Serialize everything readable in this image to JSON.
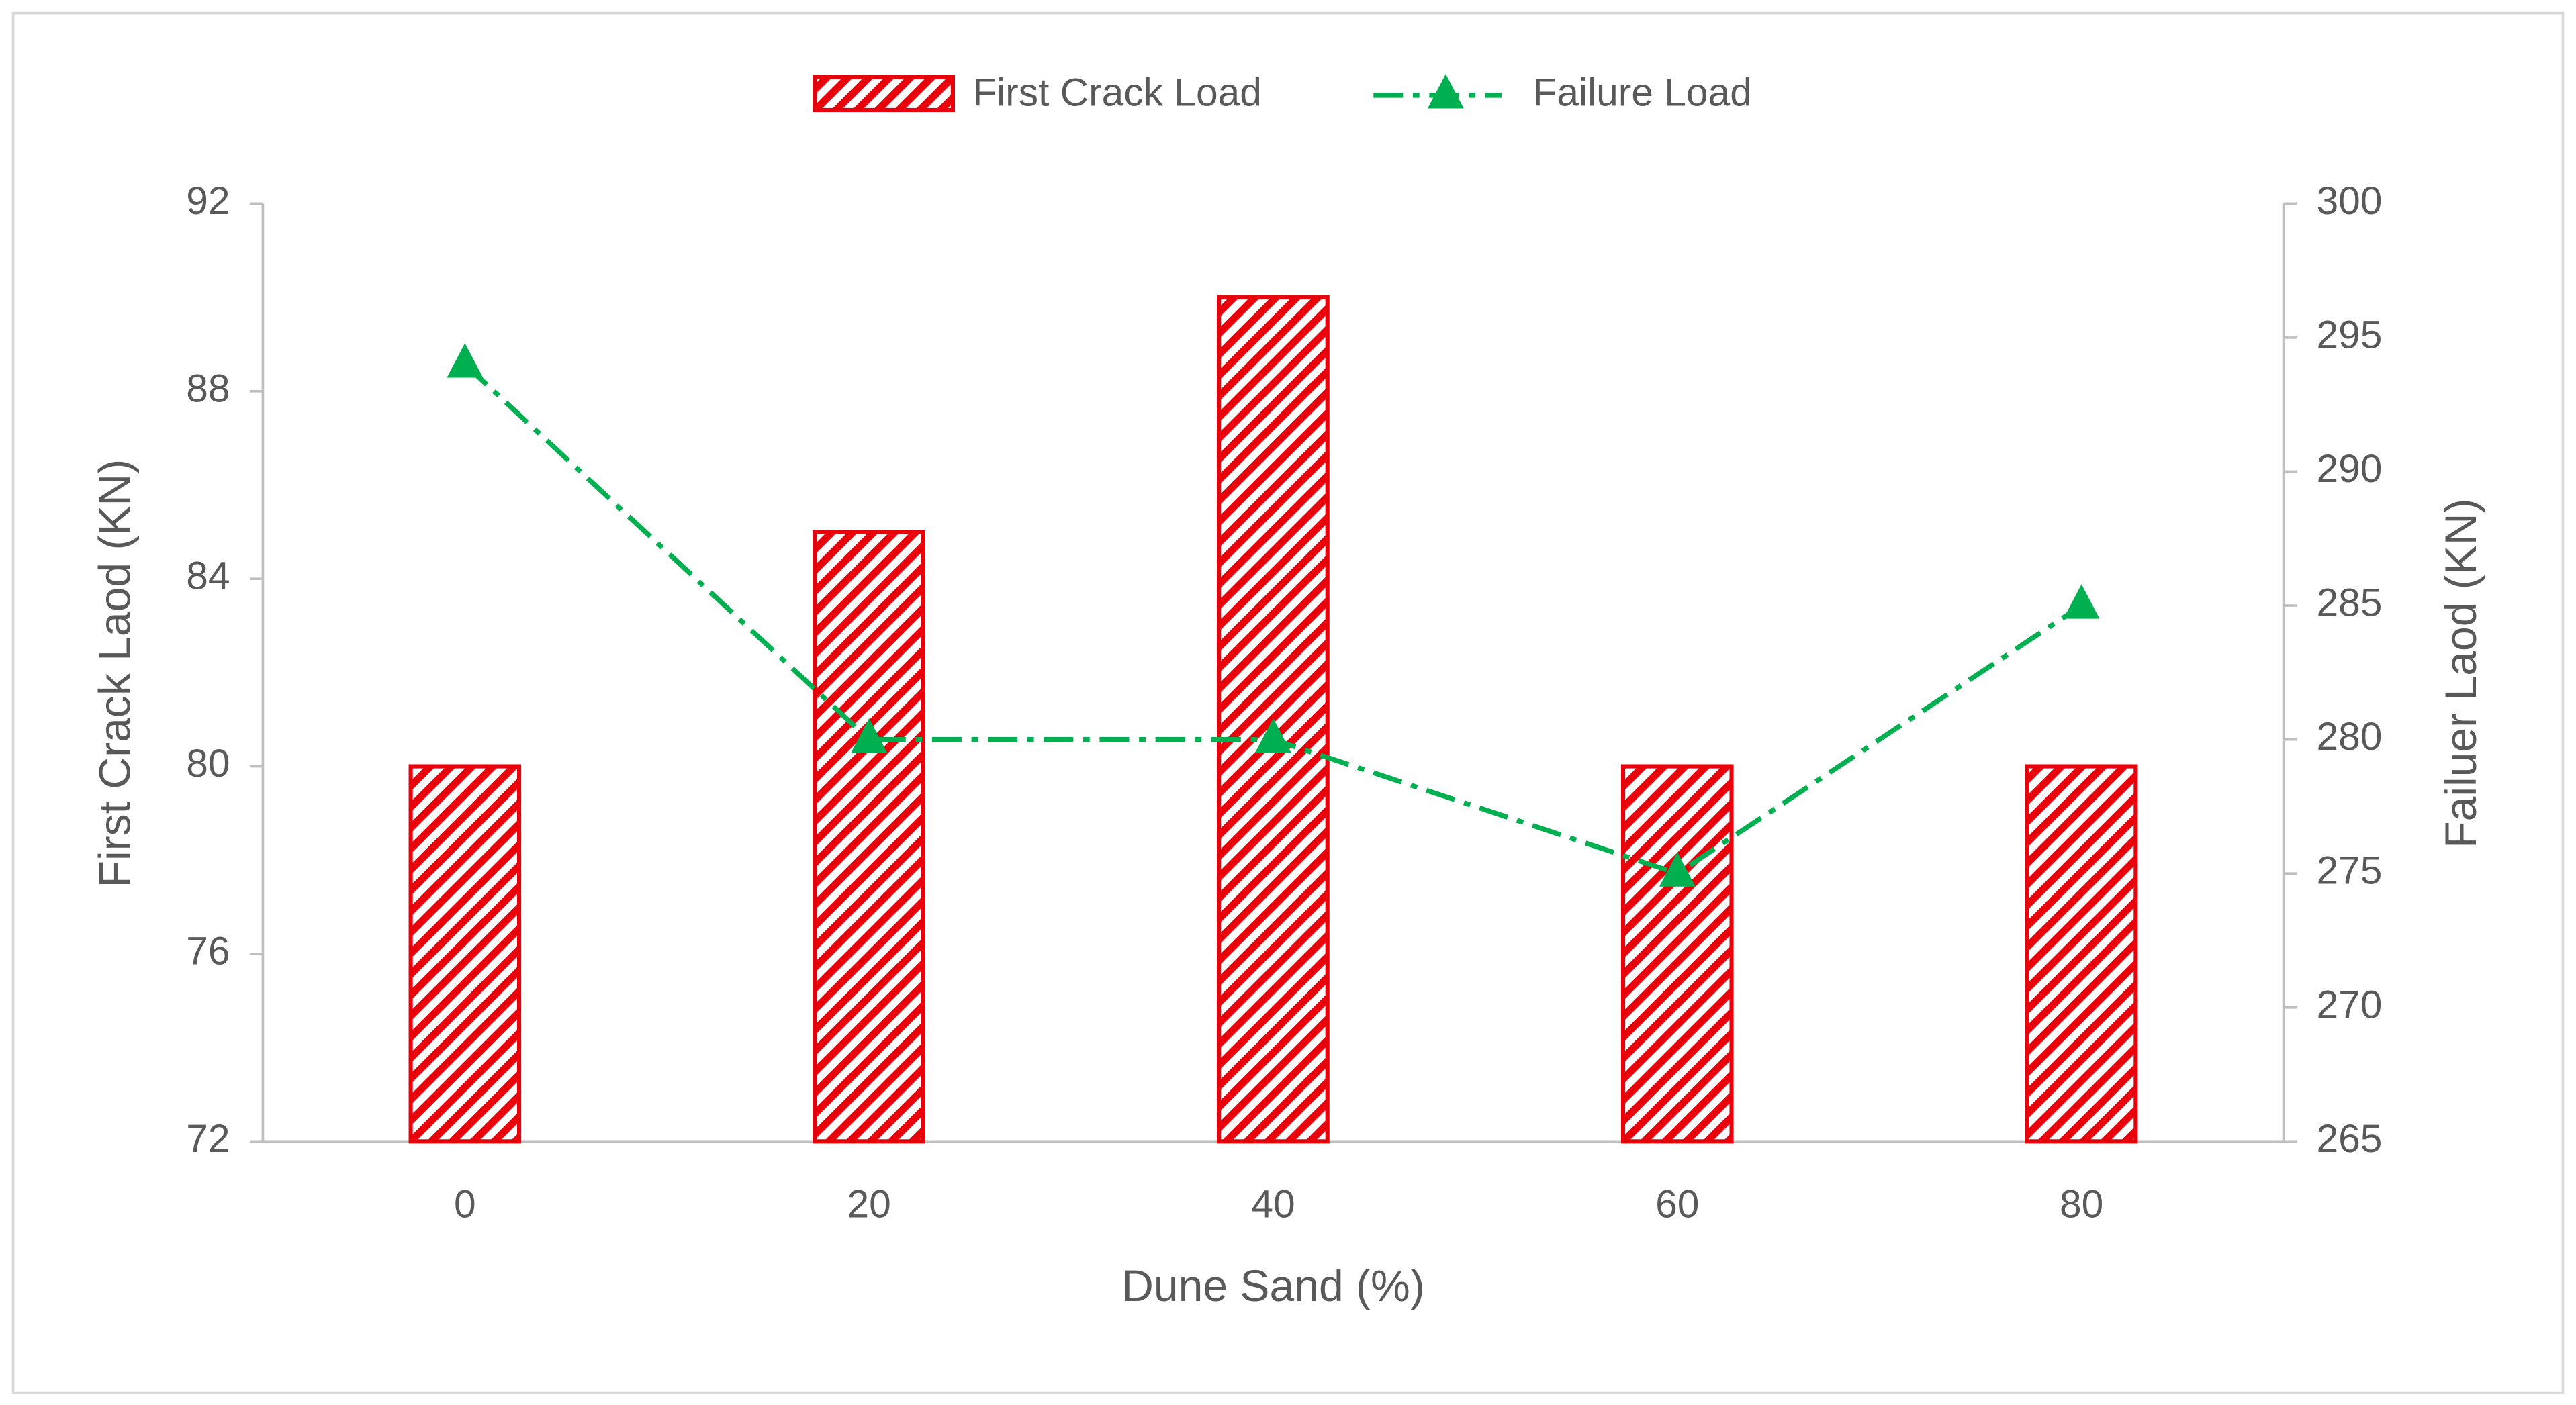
{
  "chart_data": {
    "type": "combo",
    "x_label": "Dune Sand (%)",
    "y_label": "First Crack Laod (KN)",
    "y2_label": "Failuer Laod (KN)",
    "categories": [
      "0",
      "20",
      "40",
      "60",
      "80"
    ],
    "series": [
      {
        "name": "First Crack Load",
        "type": "bar",
        "color": "#e8000b",
        "values": [
          80,
          85,
          90,
          80,
          80
        ]
      },
      {
        "name": "Failure Load",
        "type": "line",
        "axis": "y2",
        "color": "#00b050",
        "values": [
          294,
          280,
          280,
          275,
          285
        ]
      }
    ],
    "ylim": [
      72,
      92
    ],
    "yticks": [
      72,
      76,
      80,
      84,
      88,
      92
    ],
    "y2lim": [
      265,
      300
    ],
    "y2ticks": [
      265,
      270,
      275,
      280,
      285,
      290,
      295,
      300
    ],
    "legend": "top"
  }
}
